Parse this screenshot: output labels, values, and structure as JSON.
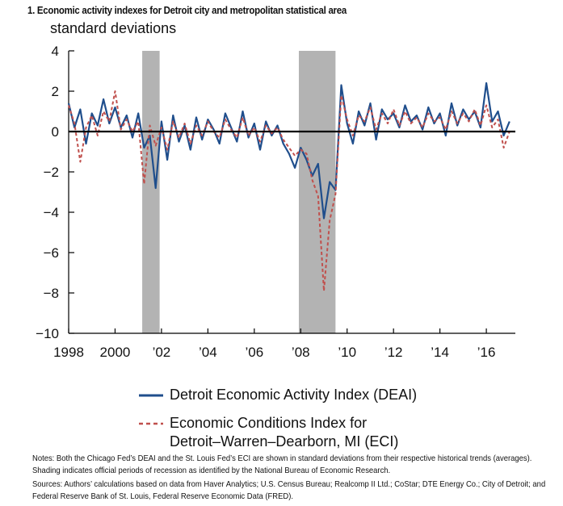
{
  "title": "1. Economic activity indexes for Detroit city and metropolitan statistical area",
  "units": "standard deviations",
  "chart_data": {
    "type": "line",
    "title": "1. Economic activity indexes for Detroit city and metropolitan statistical area",
    "ylabel": "standard deviations",
    "xlabel": "",
    "xlim": [
      1998.0,
      2017.25
    ],
    "ylim": [
      -10,
      4
    ],
    "yticks": [
      4,
      2,
      0,
      -2,
      -4,
      -6,
      -8,
      -10
    ],
    "ytick_labels": [
      "4",
      "2",
      "0",
      "−2",
      "−4",
      "−6",
      "−8",
      "−10"
    ],
    "xticks": [
      1998,
      2000,
      2002,
      2004,
      2006,
      2008,
      2010,
      2012,
      2014,
      2016
    ],
    "xtick_labels": [
      "1998",
      "2000",
      "’02",
      "’04",
      "’06",
      "’08",
      "’10",
      "’12",
      "’14",
      "’16"
    ],
    "recessions": [
      [
        2001.17,
        2001.92
      ],
      [
        2007.92,
        2009.5
      ]
    ],
    "series": [
      {
        "name": "Detroit Economic Activity Index (DEAI)",
        "color": "#1f4e8c",
        "style": "solid",
        "x": [
          1998.0,
          1998.25,
          1998.5,
          1998.75,
          1999.0,
          1999.25,
          1999.5,
          1999.75,
          2000.0,
          2000.25,
          2000.5,
          2000.75,
          2001.0,
          2001.25,
          2001.5,
          2001.75,
          2002.0,
          2002.25,
          2002.5,
          2002.75,
          2003.0,
          2003.25,
          2003.5,
          2003.75,
          2004.0,
          2004.25,
          2004.5,
          2004.75,
          2005.0,
          2005.25,
          2005.5,
          2005.75,
          2006.0,
          2006.25,
          2006.5,
          2006.75,
          2007.0,
          2007.25,
          2007.5,
          2007.75,
          2008.0,
          2008.25,
          2008.5,
          2008.75,
          2009.0,
          2009.25,
          2009.5,
          2009.75,
          2010.0,
          2010.25,
          2010.5,
          2010.75,
          2011.0,
          2011.25,
          2011.5,
          2011.75,
          2012.0,
          2012.25,
          2012.5,
          2012.75,
          2013.0,
          2013.25,
          2013.5,
          2013.75,
          2014.0,
          2014.25,
          2014.5,
          2014.75,
          2015.0,
          2015.25,
          2015.5,
          2015.75,
          2016.0,
          2016.25,
          2016.5,
          2016.75,
          2017.0
        ],
        "values": [
          1.4,
          0.2,
          1.1,
          -0.6,
          0.9,
          0.3,
          1.6,
          0.4,
          1.2,
          0.2,
          0.8,
          -0.3,
          0.9,
          -0.8,
          -0.2,
          -2.8,
          0.5,
          -1.4,
          0.8,
          -0.5,
          0.3,
          -0.9,
          0.7,
          -0.4,
          0.6,
          0.1,
          -0.6,
          0.9,
          0.2,
          -0.5,
          1.0,
          -0.3,
          0.4,
          -0.9,
          0.5,
          -0.2,
          0.3,
          -0.6,
          -1.1,
          -1.8,
          -0.8,
          -1.4,
          -2.2,
          -1.6,
          -4.3,
          -2.5,
          -2.9,
          2.3,
          0.4,
          -0.6,
          1.0,
          0.3,
          1.4,
          -0.4,
          1.1,
          0.6,
          0.9,
          0.2,
          1.3,
          0.5,
          0.8,
          0.1,
          1.2,
          0.4,
          0.9,
          -0.2,
          1.4,
          0.3,
          1.1,
          0.6,
          1.0,
          0.2,
          2.4,
          0.5,
          1.0,
          -0.2,
          0.5
        ]
      },
      {
        "name": "Economic Conditions Index for Detroit–Warren–Dearborn, MI (ECI)",
        "color": "#c0504d",
        "style": "dashed",
        "x": [
          1998.0,
          1998.25,
          1998.5,
          1998.75,
          1999.0,
          1999.25,
          1999.5,
          1999.75,
          2000.0,
          2000.25,
          2000.5,
          2000.75,
          2001.0,
          2001.25,
          2001.5,
          2001.75,
          2002.0,
          2002.25,
          2002.5,
          2002.75,
          2003.0,
          2003.25,
          2003.5,
          2003.75,
          2004.0,
          2004.25,
          2004.5,
          2004.75,
          2005.0,
          2005.25,
          2005.5,
          2005.75,
          2006.0,
          2006.25,
          2006.5,
          2006.75,
          2007.0,
          2007.25,
          2007.5,
          2007.75,
          2008.0,
          2008.25,
          2008.5,
          2008.75,
          2009.0,
          2009.25,
          2009.5,
          2009.75,
          2010.0,
          2010.25,
          2010.5,
          2010.75,
          2011.0,
          2011.25,
          2011.5,
          2011.75,
          2012.0,
          2012.25,
          2012.5,
          2012.75,
          2013.0,
          2013.25,
          2013.5,
          2013.75,
          2014.0,
          2014.25,
          2014.5,
          2014.75,
          2015.0,
          2015.25,
          2015.5,
          2015.75,
          2016.0,
          2016.25,
          2016.5,
          2016.75,
          2017.0
        ],
        "values": [
          1.3,
          0.4,
          -1.5,
          0.2,
          0.8,
          -0.2,
          1.0,
          0.5,
          2.0,
          0.1,
          0.6,
          0.0,
          0.5,
          -2.6,
          0.3,
          -0.7,
          0.2,
          -0.9,
          0.5,
          -0.3,
          0.4,
          -0.6,
          0.3,
          -0.2,
          0.5,
          0.0,
          -0.3,
          0.6,
          0.1,
          -0.3,
          0.7,
          -0.2,
          0.2,
          -0.5,
          0.3,
          -0.1,
          0.2,
          -0.4,
          -0.8,
          -1.2,
          -0.9,
          -1.1,
          -2.4,
          -3.2,
          -7.9,
          -4.4,
          -3.1,
          1.8,
          0.6,
          -0.2,
          0.8,
          0.5,
          1.2,
          0.1,
          0.9,
          0.4,
          1.1,
          0.3,
          1.0,
          0.4,
          0.7,
          0.2,
          0.9,
          0.5,
          0.7,
          0.1,
          1.0,
          0.4,
          0.9,
          0.5,
          1.1,
          0.3,
          1.3,
          0.2,
          0.6,
          -0.8,
          0.0
        ]
      }
    ],
    "legend_position": "bottom"
  },
  "legend": {
    "deai": "Detroit Economic Activity Index (DEAI)",
    "eci_line1": "Economic Conditions Index for",
    "eci_line2": "Detroit–Warren–Dearborn, MI (ECI)"
  },
  "notes": {
    "notes_text": "Notes: Both the Chicago Fed’s DEAI and the St. Louis Fed’s ECI are shown in standard deviations from their respective historical trends (averages). Shading indicates official periods of recession as identified by the National Bureau of Economic Research.",
    "sources_text": "Sources: Authors’ calculations based on data from Haver Analytics; U.S. Census Bureau; Realcomp II Ltd.; CoStar; DTE Energy Co.; City of Detroit; and Federal Reserve Bank of St. Louis, Federal Reserve Economic Data (FRED)."
  },
  "colors": {
    "recession_shade": "#b3b3b3",
    "axis": "#000000",
    "deai": "#1f4e8c",
    "eci": "#c0504d"
  }
}
